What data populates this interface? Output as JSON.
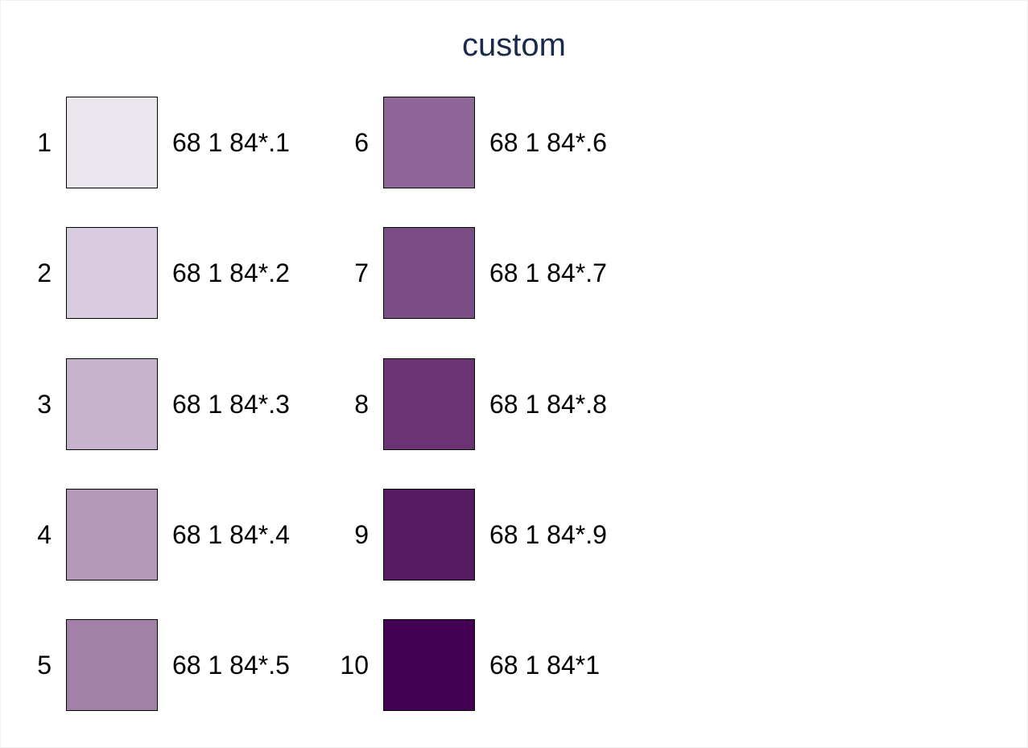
{
  "chart_data": {
    "type": "table",
    "title": "custom",
    "colors": [
      {
        "index": "1",
        "hex": "#ebe6ee",
        "label": "68 1 84*.1"
      },
      {
        "index": "2",
        "hex": "#d9cce0",
        "label": "68 1 84*.2"
      },
      {
        "index": "3",
        "hex": "#c7b3ce",
        "label": "68 1 84*.3"
      },
      {
        "index": "4",
        "hex": "#b499bb",
        "label": "68 1 84*.4"
      },
      {
        "index": "5",
        "hex": "#a280a7",
        "label": "68 1 84*.5"
      },
      {
        "index": "6",
        "hex": "#8f6697",
        "label": "68 1 84*.6"
      },
      {
        "index": "7",
        "hex": "#7c4d85",
        "label": "68 1 84*.7"
      },
      {
        "index": "8",
        "hex": "#693374",
        "label": "68 1 84*.8"
      },
      {
        "index": "9",
        "hex": "#561a62",
        "label": "68 1 84*.9"
      },
      {
        "index": "10",
        "hex": "#440154",
        "label": "68 1 84*1"
      }
    ]
  }
}
